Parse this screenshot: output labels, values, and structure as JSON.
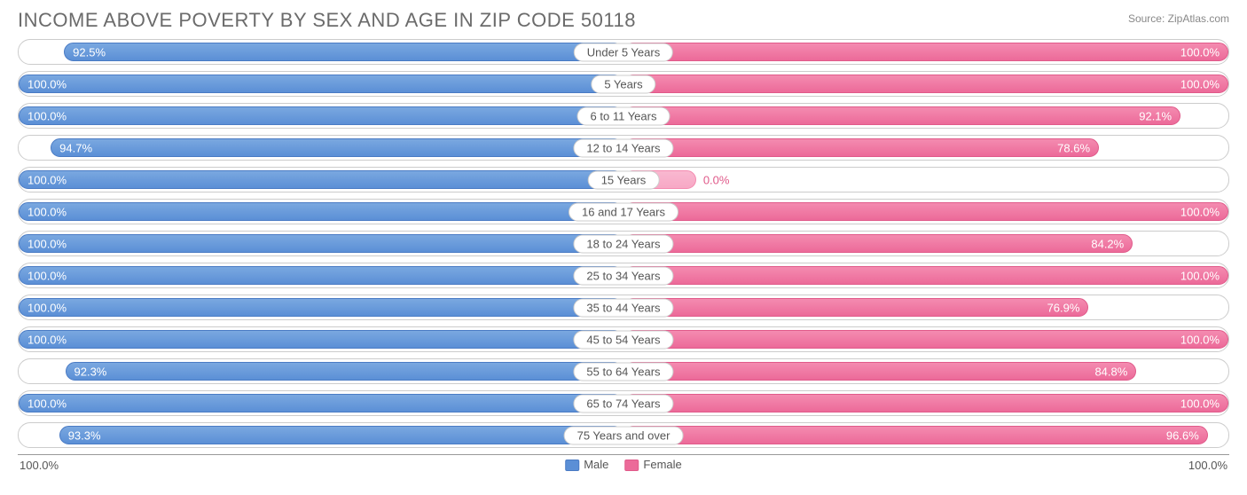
{
  "title": "INCOME ABOVE POVERTY BY SEX AND AGE IN ZIP CODE 50118",
  "source": "Source: ZipAtlas.com",
  "chart": {
    "type": "diverging-bar",
    "male_color": "#5b8fd6",
    "male_border": "#4a7bc4",
    "female_color": "#ec6a99",
    "female_border": "#e05a8a",
    "female_zero_color": "#f7a8c5",
    "row_border": "#cccccc",
    "background": "#ffffff",
    "title_color": "#6b6b6b",
    "title_fontsize": 22,
    "label_fontsize": 13,
    "value_fontsize": 13,
    "axis_max": 100.0,
    "zero_bar_min_pct": 12,
    "value_inside_threshold": 50,
    "rows": [
      {
        "category": "Under 5 Years",
        "male": 92.5,
        "female": 100.0
      },
      {
        "category": "5 Years",
        "male": 100.0,
        "female": 100.0
      },
      {
        "category": "6 to 11 Years",
        "male": 100.0,
        "female": 92.1
      },
      {
        "category": "12 to 14 Years",
        "male": 94.7,
        "female": 78.6
      },
      {
        "category": "15 Years",
        "male": 100.0,
        "female": 0.0
      },
      {
        "category": "16 and 17 Years",
        "male": 100.0,
        "female": 100.0
      },
      {
        "category": "18 to 24 Years",
        "male": 100.0,
        "female": 84.2
      },
      {
        "category": "25 to 34 Years",
        "male": 100.0,
        "female": 100.0
      },
      {
        "category": "35 to 44 Years",
        "male": 100.0,
        "female": 76.9
      },
      {
        "category": "45 to 54 Years",
        "male": 100.0,
        "female": 100.0
      },
      {
        "category": "55 to 64 Years",
        "male": 92.3,
        "female": 84.8
      },
      {
        "category": "65 to 74 Years",
        "male": 100.0,
        "female": 100.0
      },
      {
        "category": "75 Years and over",
        "male": 93.3,
        "female": 96.6
      }
    ]
  },
  "legend": {
    "male": "Male",
    "female": "Female"
  },
  "axis": {
    "left": "100.0%",
    "right": "100.0%"
  }
}
